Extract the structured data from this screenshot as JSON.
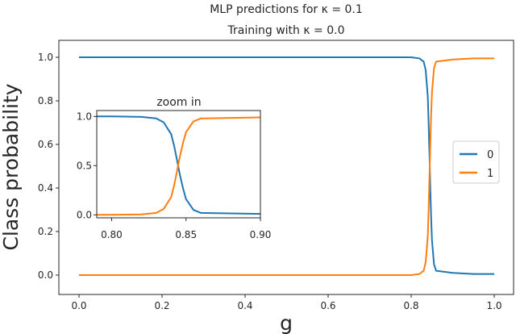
{
  "chart_data": {
    "type": "line",
    "title_line1": "MLP predictions for κ = 0.1",
    "title_line2": "Training with κ = 0.0",
    "xlabel": "g",
    "ylabel": "Class probability",
    "xlim": [
      0.0,
      1.0
    ],
    "ylim": [
      0.0,
      1.0
    ],
    "xticks": [
      0.0,
      0.2,
      0.4,
      0.6,
      0.8,
      1.0
    ],
    "xtick_labels": [
      "0.0",
      "0.2",
      "0.4",
      "0.6",
      "0.8",
      "1.0"
    ],
    "yticks": [
      0.0,
      0.2,
      0.4,
      0.6,
      0.8,
      1.0
    ],
    "ytick_labels": [
      "0.0",
      "0.2",
      "0.4",
      "0.6",
      "0.8",
      "1.0"
    ],
    "grid": false,
    "legend_placement": "center-right",
    "series": [
      {
        "name": "0",
        "color": "#1f77b4",
        "x": [
          0.0,
          0.2,
          0.4,
          0.6,
          0.8,
          0.82,
          0.83,
          0.835,
          0.84,
          0.842,
          0.844,
          0.846,
          0.848,
          0.85,
          0.855,
          0.86,
          0.9,
          0.95,
          1.0
        ],
        "y": [
          1.0,
          1.0,
          1.0,
          1.0,
          1.0,
          0.995,
          0.98,
          0.94,
          0.82,
          0.7,
          0.55,
          0.4,
          0.27,
          0.16,
          0.05,
          0.02,
          0.01,
          0.005,
          0.005
        ]
      },
      {
        "name": "1",
        "color": "#ff7f0e",
        "x": [
          0.0,
          0.2,
          0.4,
          0.6,
          0.8,
          0.82,
          0.83,
          0.835,
          0.84,
          0.842,
          0.844,
          0.846,
          0.848,
          0.85,
          0.855,
          0.86,
          0.9,
          0.95,
          1.0
        ],
        "y": [
          0.0,
          0.0,
          0.0,
          0.0,
          0.0,
          0.005,
          0.02,
          0.06,
          0.18,
          0.3,
          0.45,
          0.6,
          0.73,
          0.84,
          0.95,
          0.98,
          0.99,
          0.995,
          0.995
        ]
      }
    ],
    "inset": {
      "title": "zoom in",
      "xlim": [
        0.79,
        0.9
      ],
      "ylim": [
        -0.03,
        1.06
      ],
      "xticks": [
        0.8,
        0.85,
        0.9
      ],
      "xtick_labels": [
        "0.80",
        "0.85",
        "0.90"
      ],
      "yticks": [
        0.0,
        0.5,
        1.0
      ],
      "ytick_labels": [
        "0.0",
        "0.5",
        "1.0"
      ]
    }
  }
}
